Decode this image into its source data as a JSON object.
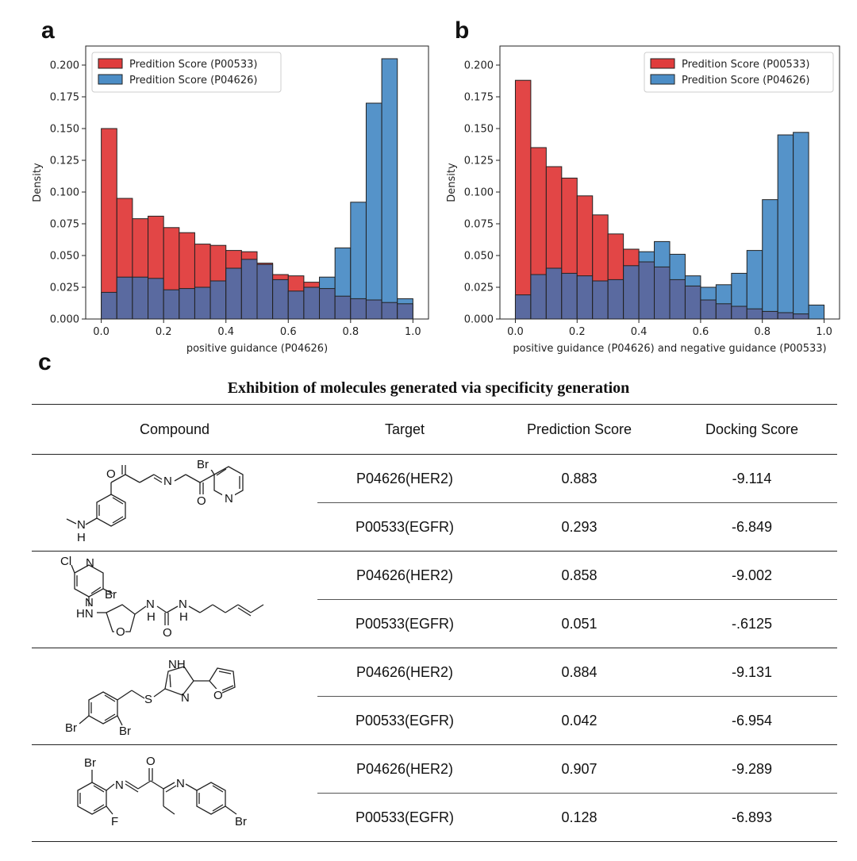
{
  "panels": {
    "a": "a",
    "b": "b",
    "c": "c"
  },
  "chart_data": [
    {
      "type": "histogram",
      "panel": "a",
      "xlabel": "positive guidance (P04626)",
      "ylabel": "Density",
      "xlim": [
        -0.05,
        1.05
      ],
      "ylim": [
        0,
        0.215
      ],
      "xticks": [
        "0.0",
        "0.2",
        "0.4",
        "0.6",
        "0.8",
        "1.0"
      ],
      "yticks": [
        "0.000",
        "0.025",
        "0.050",
        "0.075",
        "0.100",
        "0.125",
        "0.150",
        "0.175",
        "0.200"
      ],
      "legend_position": "top-left",
      "bin_edges": [
        0.0,
        0.05,
        0.1,
        0.15,
        0.2,
        0.25,
        0.3,
        0.35,
        0.4,
        0.45,
        0.5,
        0.55,
        0.6,
        0.65,
        0.7,
        0.75,
        0.8,
        0.85,
        0.9,
        0.95,
        1.0
      ],
      "series": [
        {
          "name": "Predition Score (P00533)",
          "color": "#e03c3c",
          "values": [
            0.15,
            0.095,
            0.079,
            0.081,
            0.072,
            0.068,
            0.059,
            0.058,
            0.054,
            0.053,
            0.044,
            0.035,
            0.034,
            0.029,
            0.024,
            0.018,
            0.016,
            0.015,
            0.013,
            0.012
          ]
        },
        {
          "name": "Predition Score (P04626)",
          "color": "#4c8dc6",
          "values": [
            0.021,
            0.033,
            0.033,
            0.032,
            0.023,
            0.024,
            0.025,
            0.03,
            0.04,
            0.047,
            0.043,
            0.031,
            0.022,
            0.025,
            0.033,
            0.056,
            0.092,
            0.17,
            0.205,
            0.016
          ]
        }
      ]
    },
    {
      "type": "histogram",
      "panel": "b",
      "xlabel": "positive guidance (P04626) and negative guidance (P00533)",
      "ylabel": "Density",
      "xlim": [
        -0.05,
        1.05
      ],
      "ylim": [
        0,
        0.215
      ],
      "xticks": [
        "0.0",
        "0.2",
        "0.4",
        "0.6",
        "0.8",
        "1.0"
      ],
      "yticks": [
        "0.000",
        "0.025",
        "0.050",
        "0.075",
        "0.100",
        "0.125",
        "0.150",
        "0.175",
        "0.200"
      ],
      "legend_position": "top-right",
      "bin_edges": [
        0.0,
        0.05,
        0.1,
        0.15,
        0.2,
        0.25,
        0.3,
        0.35,
        0.4,
        0.45,
        0.5,
        0.55,
        0.6,
        0.65,
        0.7,
        0.75,
        0.8,
        0.85,
        0.9,
        0.95,
        1.0
      ],
      "series": [
        {
          "name": "Predition Score (P00533)",
          "color": "#e03c3c",
          "values": [
            0.188,
            0.135,
            0.12,
            0.111,
            0.097,
            0.082,
            0.067,
            0.055,
            0.045,
            0.041,
            0.031,
            0.026,
            0.015,
            0.012,
            0.01,
            0.008,
            0.006,
            0.005,
            0.004,
            0.0
          ]
        },
        {
          "name": "Predition Score (P04626)",
          "color": "#4c8dc6",
          "values": [
            0.019,
            0.035,
            0.04,
            0.036,
            0.034,
            0.03,
            0.031,
            0.042,
            0.053,
            0.061,
            0.051,
            0.034,
            0.025,
            0.027,
            0.036,
            0.054,
            0.094,
            0.145,
            0.147,
            0.011
          ]
        }
      ]
    }
  ],
  "table": {
    "title": "Exhibition of molecules generated via specificity generation",
    "headers": [
      "Compound",
      "Target",
      "Prediction Score",
      "Docking Score"
    ],
    "groups": [
      {
        "rows": [
          {
            "target": "P04626(HER2)",
            "pred": "0.883",
            "dock": "-9.114"
          },
          {
            "target": "P00533(EGFR)",
            "pred": "0.293",
            "dock": "-6.849"
          }
        ]
      },
      {
        "rows": [
          {
            "target": "P04626(HER2)",
            "pred": "0.858",
            "dock": "-9.002"
          },
          {
            "target": "P00533(EGFR)",
            "pred": "0.051",
            "dock": "-.6125"
          }
        ]
      },
      {
        "rows": [
          {
            "target": "P04626(HER2)",
            "pred": "0.884",
            "dock": "-9.131"
          },
          {
            "target": "P00533(EGFR)",
            "pred": "0.042",
            "dock": "-6.954"
          }
        ]
      },
      {
        "rows": [
          {
            "target": "P04626(HER2)",
            "pred": "0.907",
            "dock": "-9.289"
          },
          {
            "target": "P00533(EGFR)",
            "pred": "0.128",
            "dock": "-6.893"
          }
        ]
      }
    ]
  },
  "molecules": {
    "m1": {
      "br": "Br",
      "o1": "O",
      "n1": "N",
      "o2": "O",
      "n2": "N",
      "nh": "N",
      "h": "H"
    },
    "m2": {
      "cl": "Cl",
      "n1": "N",
      "br": "Br",
      "n2": "N",
      "hn": "HN",
      "n3": "N",
      "h3": "H",
      "o1": "O",
      "n4": "N",
      "h4": "H",
      "o2": "O"
    },
    "m3": {
      "nh": "NH",
      "s": "S",
      "n": "N",
      "o": "O",
      "br1": "Br",
      "br2": "Br"
    },
    "m4": {
      "br1": "Br",
      "n1": "N",
      "o": "O",
      "n2": "N",
      "f": "F",
      "br2": "Br"
    }
  }
}
